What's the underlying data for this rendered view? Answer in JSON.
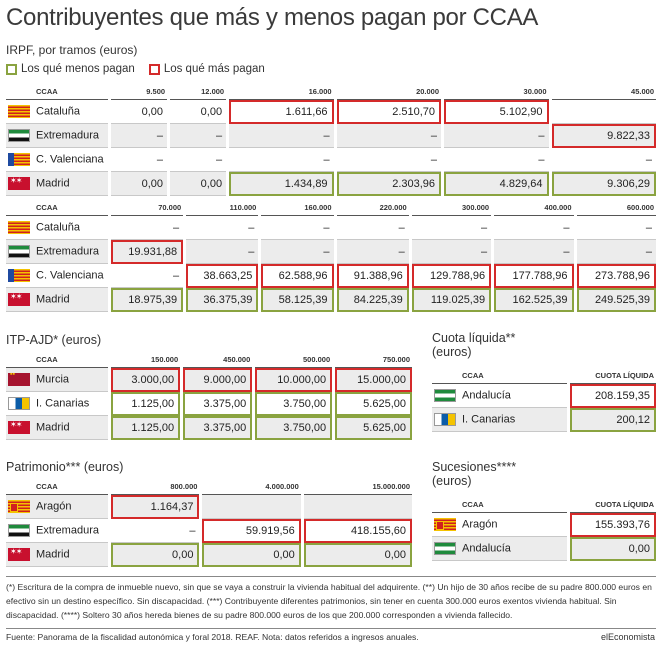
{
  "title": "Contribuyentes que más y menos pagan por CCAA",
  "irpf": {
    "subtitle": "IRPF, por tramos (euros)",
    "legend": {
      "low": "Los qué menos pagan",
      "high": "Los qué más pagan"
    },
    "table1": {
      "header": [
        "CCAA",
        "9.500",
        "12.000",
        "16.000",
        "20.000",
        "30.000",
        "45.000"
      ],
      "rows": [
        {
          "name": "Cataluña",
          "flag": "cat",
          "values": [
            "0,00",
            "0,00",
            "1.611,66",
            "2.510,70",
            "5.102,90",
            ""
          ]
        },
        {
          "name": "Extremadura",
          "flag": "ext",
          "values": [
            "–",
            "–",
            "–",
            "–",
            "–",
            "9.822,33"
          ]
        },
        {
          "name": "C. Valenciana",
          "flag": "val",
          "values": [
            "–",
            "–",
            "–",
            "–",
            "–",
            "–"
          ]
        },
        {
          "name": "Madrid",
          "flag": "mad",
          "values": [
            "0,00",
            "0,00",
            "1.434,89",
            "2.303,96",
            "4.829,64",
            "9.306,29"
          ]
        }
      ]
    },
    "table2": {
      "header": [
        "CCAA",
        "70.000",
        "110.000",
        "160.000",
        "220.000",
        "300.000",
        "400.000",
        "600.000"
      ],
      "rows": [
        {
          "name": "Cataluña",
          "flag": "cat",
          "values": [
            "–",
            "–",
            "–",
            "–",
            "–",
            "–",
            "–"
          ]
        },
        {
          "name": "Extremadura",
          "flag": "ext",
          "values": [
            "19.931,88",
            "–",
            "–",
            "–",
            "–",
            "–",
            "–"
          ]
        },
        {
          "name": "C. Valenciana",
          "flag": "val",
          "values": [
            "–",
            "38.663,25",
            "62.588,96",
            "91.388,96",
            "129.788,96",
            "177.788,96",
            "273.788,96"
          ]
        },
        {
          "name": "Madrid",
          "flag": "mad",
          "values": [
            "18.975,39",
            "36.375,39",
            "58.125,39",
            "84.225,39",
            "119.025,39",
            "162.525,39",
            "249.525,39"
          ]
        }
      ]
    }
  },
  "itp": {
    "subtitle": "ITP-AJD* (euros)",
    "header": [
      "CCAA",
      "150.000",
      "450.000",
      "500.000",
      "750.000"
    ],
    "rows": [
      {
        "name": "Murcia",
        "flag": "mur",
        "values": [
          "3.000,00",
          "9.000,00",
          "10.000,00",
          "15.000,00"
        ]
      },
      {
        "name": "I. Canarias",
        "flag": "can",
        "values": [
          "1.125,00",
          "3.375,00",
          "3.750,00",
          "5.625,00"
        ]
      },
      {
        "name": "Madrid",
        "flag": "mad",
        "values": [
          "1.125,00",
          "3.375,00",
          "3.750,00",
          "5.625,00"
        ]
      }
    ]
  },
  "cuota": {
    "subtitle": "Cuota líquida** (euros)",
    "header": [
      "CCAA",
      "CUOTA LÍQUIDA"
    ],
    "rows": [
      {
        "name": "Andalucía",
        "flag": "and",
        "values": [
          "208.159,35"
        ]
      },
      {
        "name": "I. Canarias",
        "flag": "can",
        "values": [
          "200,12"
        ]
      }
    ]
  },
  "patrimonio": {
    "subtitle": "Patrimonio*** (euros)",
    "header": [
      "CCAA",
      "800.000",
      "4.000.000",
      "15.000.000"
    ],
    "rows": [
      {
        "name": "Aragón",
        "flag": "ara",
        "values": [
          "1.164,37",
          "",
          ""
        ]
      },
      {
        "name": "Extremadura",
        "flag": "ext",
        "values": [
          "–",
          "59.919,56",
          "418.155,60"
        ]
      },
      {
        "name": "Madrid",
        "flag": "mad",
        "values": [
          "0,00",
          "0,00",
          "0,00"
        ]
      }
    ]
  },
  "sucesiones": {
    "subtitle": "Sucesiones**** (euros)",
    "header": [
      "CCAA",
      "CUOTA LÍQUIDA"
    ],
    "rows": [
      {
        "name": "Aragón",
        "flag": "ara",
        "values": [
          "155.393,76"
        ]
      },
      {
        "name": "Andalucía",
        "flag": "and",
        "values": [
          "0,00"
        ]
      }
    ]
  },
  "footnote": "(*) Escritura de la compra de inmueble nuevo, sin que se vaya a construir la vivienda habitual del adquirente. (**) Un hijo de 30 años recibe de su padre 800.000 euros en efectivo sin un destino específico. Sin discapacidad. (***) Contribuyente diferentes patrimonios, sin tener en cuenta 300.000 euros exentos vivienda habitual. Sin discapacidad. (****) Soltero 30 años hereda bienes de su padre 800.000 euros de los que 200.000 corresponden a vivienda fallecido.",
  "source": "Fuente: Panorama de la fiscalidad autonómica y foral 2018. REAF. Nota: datos referidos a ingresos anuales.",
  "brand": "elEconomista",
  "colors": {
    "high": "#d42a2a",
    "low": "#8aa340",
    "shade": "#ececec"
  },
  "chart_data": {
    "type": "table",
    "tables": [
      {
        "name": "IRPF, por tramos (euros)",
        "columns": [
          "CCAA",
          "9.500",
          "12.000",
          "16.000",
          "20.000",
          "30.000",
          "45.000",
          "70.000",
          "110.000",
          "160.000",
          "220.000",
          "300.000",
          "400.000",
          "600.000"
        ],
        "rows": [
          [
            "Cataluña",
            "0,00",
            "0,00",
            "1.611,66",
            "2.510,70",
            "5.102,90",
            "",
            "–",
            "–",
            "–",
            "–",
            "–",
            "–",
            "–"
          ],
          [
            "Extremadura",
            "–",
            "–",
            "–",
            "–",
            "–",
            "9.822,33",
            "19.931,88",
            "–",
            "–",
            "–",
            "–",
            "–",
            "–"
          ],
          [
            "C. Valenciana",
            "–",
            "–",
            "–",
            "–",
            "–",
            "–",
            "–",
            "38.663,25",
            "62.588,96",
            "91.388,96",
            "129.788,96",
            "177.788,96",
            "273.788,96"
          ],
          [
            "Madrid",
            "0,00",
            "0,00",
            "1.434,89",
            "2.303,96",
            "4.829,64",
            "9.306,29",
            "18.975,39",
            "36.375,39",
            "58.125,39",
            "84.225,39",
            "119.025,39",
            "162.525,39",
            "249.525,39"
          ]
        ]
      },
      {
        "name": "ITP-AJD* (euros)",
        "columns": [
          "CCAA",
          "150.000",
          "450.000",
          "500.000",
          "750.000"
        ],
        "rows": [
          [
            "Murcia",
            "3.000,00",
            "9.000,00",
            "10.000,00",
            "15.000,00"
          ],
          [
            "I. Canarias",
            "1.125,00",
            "3.375,00",
            "3.750,00",
            "5.625,00"
          ],
          [
            "Madrid",
            "1.125,00",
            "3.375,00",
            "3.750,00",
            "5.625,00"
          ]
        ]
      },
      {
        "name": "Cuota líquida** (euros)",
        "columns": [
          "CCAA",
          "CUOTA LÍQUIDA"
        ],
        "rows": [
          [
            "Andalucía",
            "208.159,35"
          ],
          [
            "I. Canarias",
            "200,12"
          ]
        ]
      },
      {
        "name": "Patrimonio*** (euros)",
        "columns": [
          "CCAA",
          "800.000",
          "4.000.000",
          "15.000.000"
        ],
        "rows": [
          [
            "Aragón",
            "1.164,37",
            "",
            ""
          ],
          [
            "Extremadura",
            "–",
            "59.919,56",
            "418.155,60"
          ],
          [
            "Madrid",
            "0,00",
            "0,00",
            "0,00"
          ]
        ]
      },
      {
        "name": "Sucesiones**** (euros)",
        "columns": [
          "CCAA",
          "CUOTA LÍQUIDA"
        ],
        "rows": [
          [
            "Aragón",
            "155.393,76"
          ],
          [
            "Andalucía",
            "0,00"
          ]
        ]
      }
    ]
  }
}
